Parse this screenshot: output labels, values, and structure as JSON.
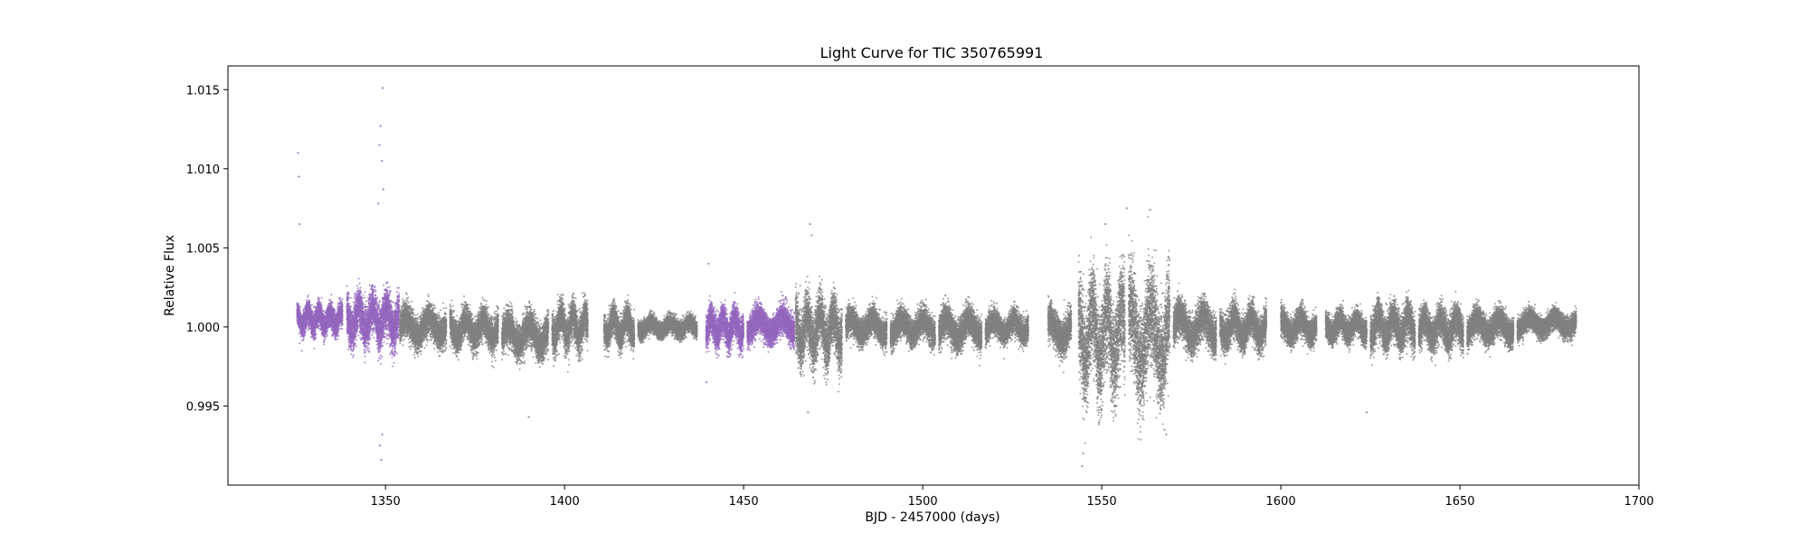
{
  "colors": {
    "highlight": "#9467bd",
    "base": "#808080",
    "axis": "#000000",
    "background": "#ffffff"
  },
  "chart_data": {
    "type": "scatter",
    "title": "Light Curve for TIC 350765991",
    "xlabel": "BJD - 2457000 (days)",
    "ylabel": "Relative Flux",
    "xlim": [
      1306,
      1700
    ],
    "ylim": [
      0.99,
      1.0165
    ],
    "xticks": [
      1350,
      1400,
      1450,
      1500,
      1550,
      1600,
      1650,
      1700
    ],
    "xtick_labels": [
      "1350",
      "1400",
      "1450",
      "1500",
      "1550",
      "1600",
      "1650",
      "1700"
    ],
    "yticks": [
      0.995,
      1.0,
      1.005,
      1.01,
      1.015
    ],
    "ytick_labels": [
      "0.995",
      "1.000",
      "1.005",
      "1.010",
      "1.015"
    ],
    "grid": false,
    "legend": "none",
    "series": [
      {
        "color": "highlight",
        "segments": [
          {
            "x_start": 1325.3,
            "x_end": 1338.0,
            "mean": 1.0005,
            "scatter": 0.0007
          },
          {
            "x_start": 1339.2,
            "x_end": 1353.8,
            "mean": 1.0005,
            "scatter": 0.0012
          },
          {
            "x_start": 1439.5,
            "x_end": 1450.0,
            "mean": 1.0,
            "scatter": 0.0009
          },
          {
            "x_start": 1451.0,
            "x_end": 1464.2,
            "mean": 1.0001,
            "scatter": 0.0008
          }
        ],
        "notable_points": [
          {
            "x": 1325.6,
            "y": 1.011
          },
          {
            "x": 1325.8,
            "y": 1.0095
          },
          {
            "x": 1326.0,
            "y": 1.0065
          },
          {
            "x": 1349.2,
            "y": 1.0151
          },
          {
            "x": 1348.6,
            "y": 1.0127
          },
          {
            "x": 1348.3,
            "y": 1.0115
          },
          {
            "x": 1349.0,
            "y": 1.0105
          },
          {
            "x": 1349.4,
            "y": 1.0087
          },
          {
            "x": 1348.0,
            "y": 1.0078
          },
          {
            "x": 1348.8,
            "y": 0.9916
          },
          {
            "x": 1348.4,
            "y": 0.9925
          },
          {
            "x": 1349.1,
            "y": 0.9932
          },
          {
            "x": 1440.2,
            "y": 1.004
          },
          {
            "x": 1439.6,
            "y": 0.9965
          }
        ]
      },
      {
        "color": "base",
        "segments": [
          {
            "x_start": 1354.0,
            "x_end": 1367.0,
            "mean": 1.0,
            "scatter": 0.0009
          },
          {
            "x_start": 1368.0,
            "x_end": 1381.5,
            "mean": 0.9999,
            "scatter": 0.0009
          },
          {
            "x_start": 1382.5,
            "x_end": 1395.5,
            "mean": 0.9995,
            "scatter": 0.001
          },
          {
            "x_start": 1396.5,
            "x_end": 1406.5,
            "mean": 1.0,
            "scatter": 0.0011
          },
          {
            "x_start": 1411.0,
            "x_end": 1419.5,
            "mean": 1.0,
            "scatter": 0.0009
          },
          {
            "x_start": 1420.5,
            "x_end": 1437.0,
            "mean": 1.0,
            "scatter": 0.0005
          },
          {
            "x_start": 1464.5,
            "x_end": 1477.5,
            "mean": 0.9998,
            "scatter": 0.0016
          },
          {
            "x_start": 1478.5,
            "x_end": 1490.0,
            "mean": 1.0,
            "scatter": 0.0008
          },
          {
            "x_start": 1491.0,
            "x_end": 1503.5,
            "mean": 1.0,
            "scatter": 0.0008
          },
          {
            "x_start": 1504.5,
            "x_end": 1516.5,
            "mean": 0.9999,
            "scatter": 0.0009
          },
          {
            "x_start": 1517.5,
            "x_end": 1529.5,
            "mean": 1.0,
            "scatter": 0.0007
          },
          {
            "x_start": 1535.0,
            "x_end": 1541.5,
            "mean": 0.9998,
            "scatter": 0.001
          },
          {
            "x_start": 1543.5,
            "x_end": 1556.5,
            "mean": 0.9995,
            "scatter": 0.0028
          },
          {
            "x_start": 1557.5,
            "x_end": 1569.0,
            "mean": 0.9995,
            "scatter": 0.0028
          },
          {
            "x_start": 1570.0,
            "x_end": 1582.0,
            "mean": 1.0,
            "scatter": 0.0011
          },
          {
            "x_start": 1583.0,
            "x_end": 1596.0,
            "mean": 1.0,
            "scatter": 0.001
          },
          {
            "x_start": 1600.0,
            "x_end": 1610.0,
            "mean": 1.0,
            "scatter": 0.0008
          },
          {
            "x_start": 1612.5,
            "x_end": 1624.0,
            "mean": 1.0,
            "scatter": 0.0007
          },
          {
            "x_start": 1625.0,
            "x_end": 1637.5,
            "mean": 1.0,
            "scatter": 0.0011
          },
          {
            "x_start": 1638.5,
            "x_end": 1651.0,
            "mean": 0.9999,
            "scatter": 0.001
          },
          {
            "x_start": 1652.0,
            "x_end": 1665.0,
            "mean": 1.0,
            "scatter": 0.0008
          },
          {
            "x_start": 1666.0,
            "x_end": 1682.5,
            "mean": 1.0002,
            "scatter": 0.0006
          }
        ],
        "notable_points": [
          {
            "x": 1468.5,
            "y": 1.0065
          },
          {
            "x": 1469.0,
            "y": 1.0058
          },
          {
            "x": 1544.5,
            "y": 0.9912
          },
          {
            "x": 1544.8,
            "y": 0.992
          },
          {
            "x": 1557.0,
            "y": 1.0075
          },
          {
            "x": 1563.5,
            "y": 1.0074
          },
          {
            "x": 1568.0,
            "y": 0.9932
          },
          {
            "x": 1567.5,
            "y": 0.9935
          },
          {
            "x": 1468.0,
            "y": 0.9946
          },
          {
            "x": 1551.0,
            "y": 1.0065
          },
          {
            "x": 1390.0,
            "y": 0.9943
          },
          {
            "x": 1624.0,
            "y": 0.9946
          }
        ]
      }
    ]
  }
}
